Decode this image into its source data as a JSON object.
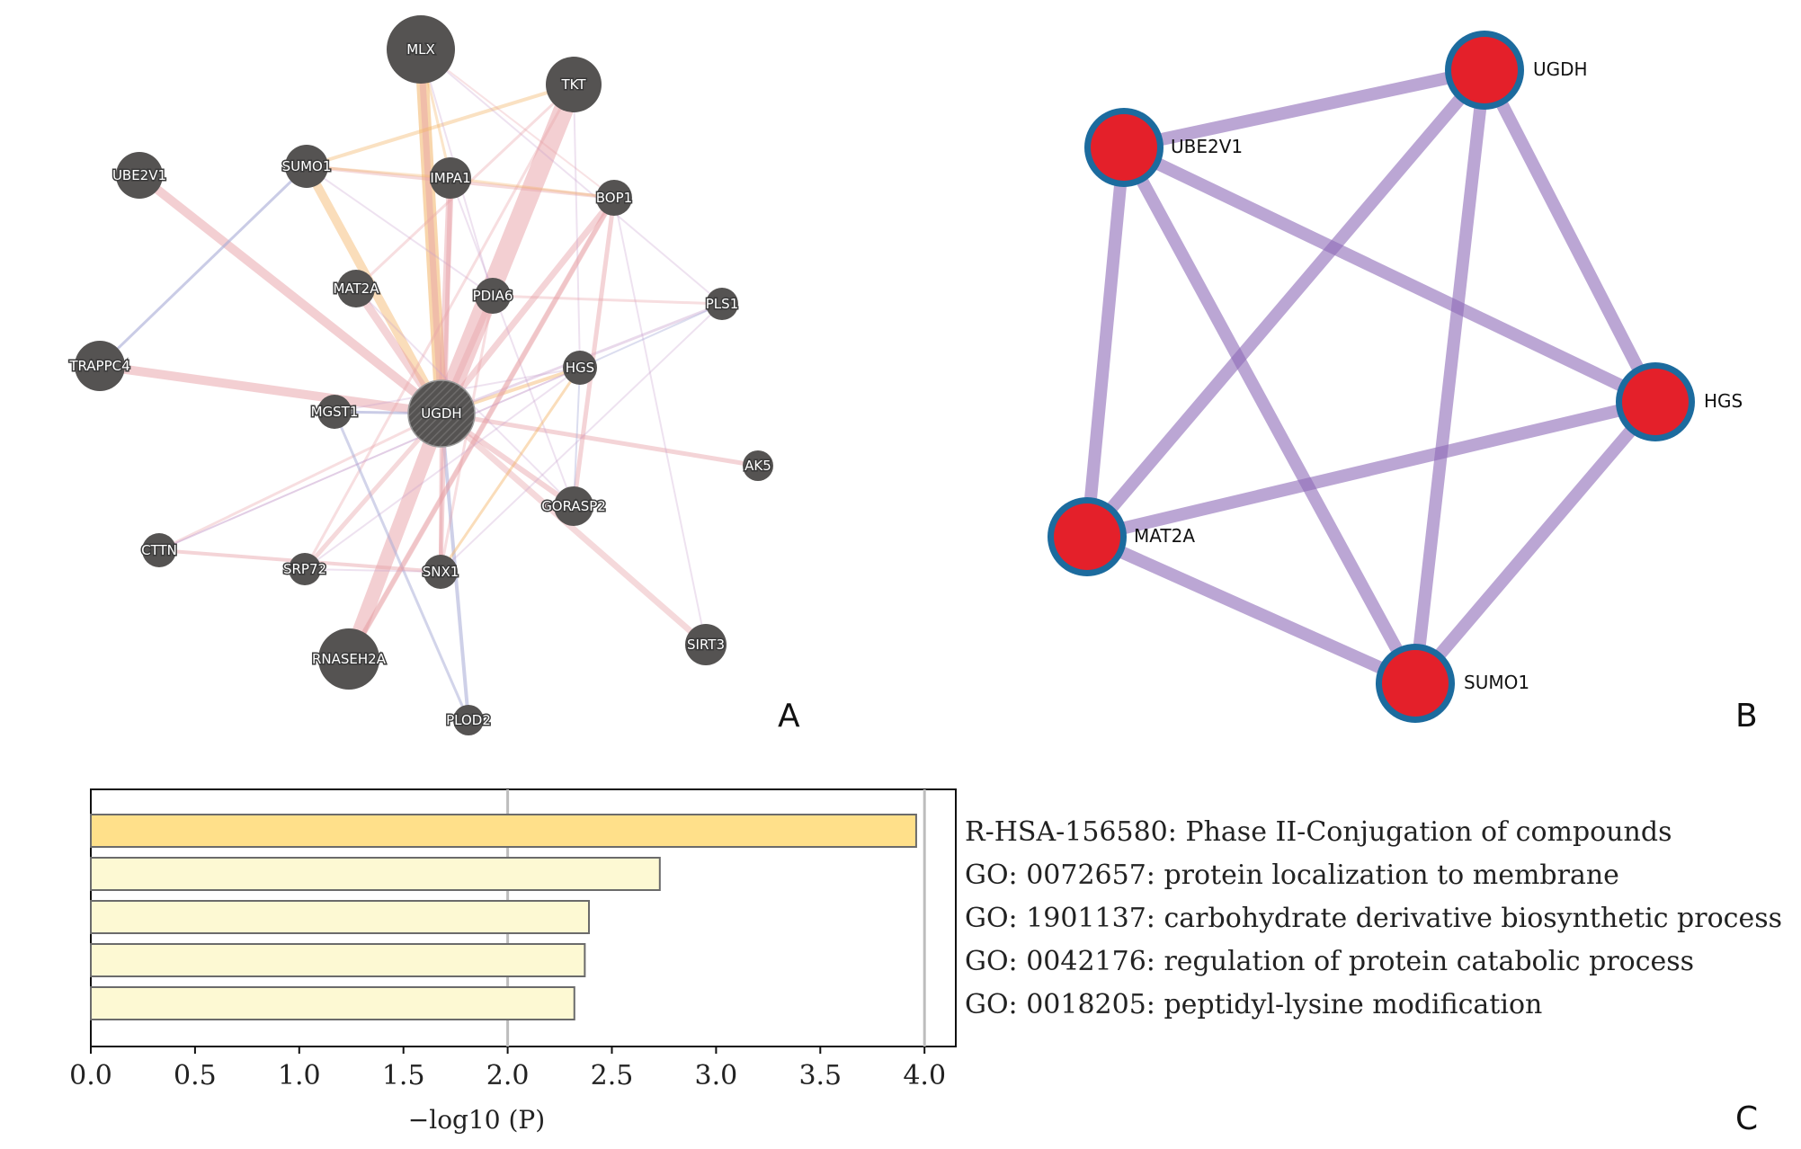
{
  "panel_a": {
    "label": "A",
    "center_node": "UGDH",
    "nodes": [
      "MLX",
      "TKT",
      "UBE2V1",
      "SUMO1",
      "IMPA1",
      "BOP1",
      "MAT2A",
      "PDIA6",
      "PLS1",
      "TRAPPC4",
      "HGS",
      "MGST1",
      "UGDH",
      "AK5",
      "GORASP2",
      "CTTN",
      "SRP72",
      "SNX1",
      "SIRT3",
      "RNASEH2A",
      "PLOD2"
    ]
  },
  "panel_b": {
    "label": "B",
    "nodes": [
      "UGDH",
      "UBE2V1",
      "HGS",
      "MAT2A",
      "SUMO1"
    ],
    "node_fill": "#e4202a",
    "node_border": "#1c6b9e",
    "edge_color": "#8e6bb8"
  },
  "panel_c": {
    "label": "C",
    "chart_data": {
      "type": "bar",
      "orientation": "horizontal",
      "categories": [
        "R-HSA-156580: Phase II-Conjugation of compounds",
        "GO: 0072657: protein localization to membrane",
        "GO: 1901137: carbohydrate derivative biosynthetic process",
        "GO: 0042176: regulation of protein catabolic process",
        "GO: 0018205: peptidyl-lysine modification"
      ],
      "values": [
        3.96,
        2.73,
        2.39,
        2.37,
        2.32
      ],
      "xlabel": "−log10 (P)",
      "xlim": [
        0,
        4.15
      ],
      "xticks": [
        "0.0",
        "0.5",
        "1.0",
        "1.5",
        "2.0",
        "2.5",
        "3.0",
        "3.5",
        "4.0"
      ],
      "reference_lines": [
        2.0,
        4.0
      ],
      "colors": {
        "top_bar": "#ffe08a",
        "other_bars": "#fdf9d3",
        "bar_edge": "#6b6b6b",
        "ref_line": "#bdbdbd"
      }
    }
  }
}
